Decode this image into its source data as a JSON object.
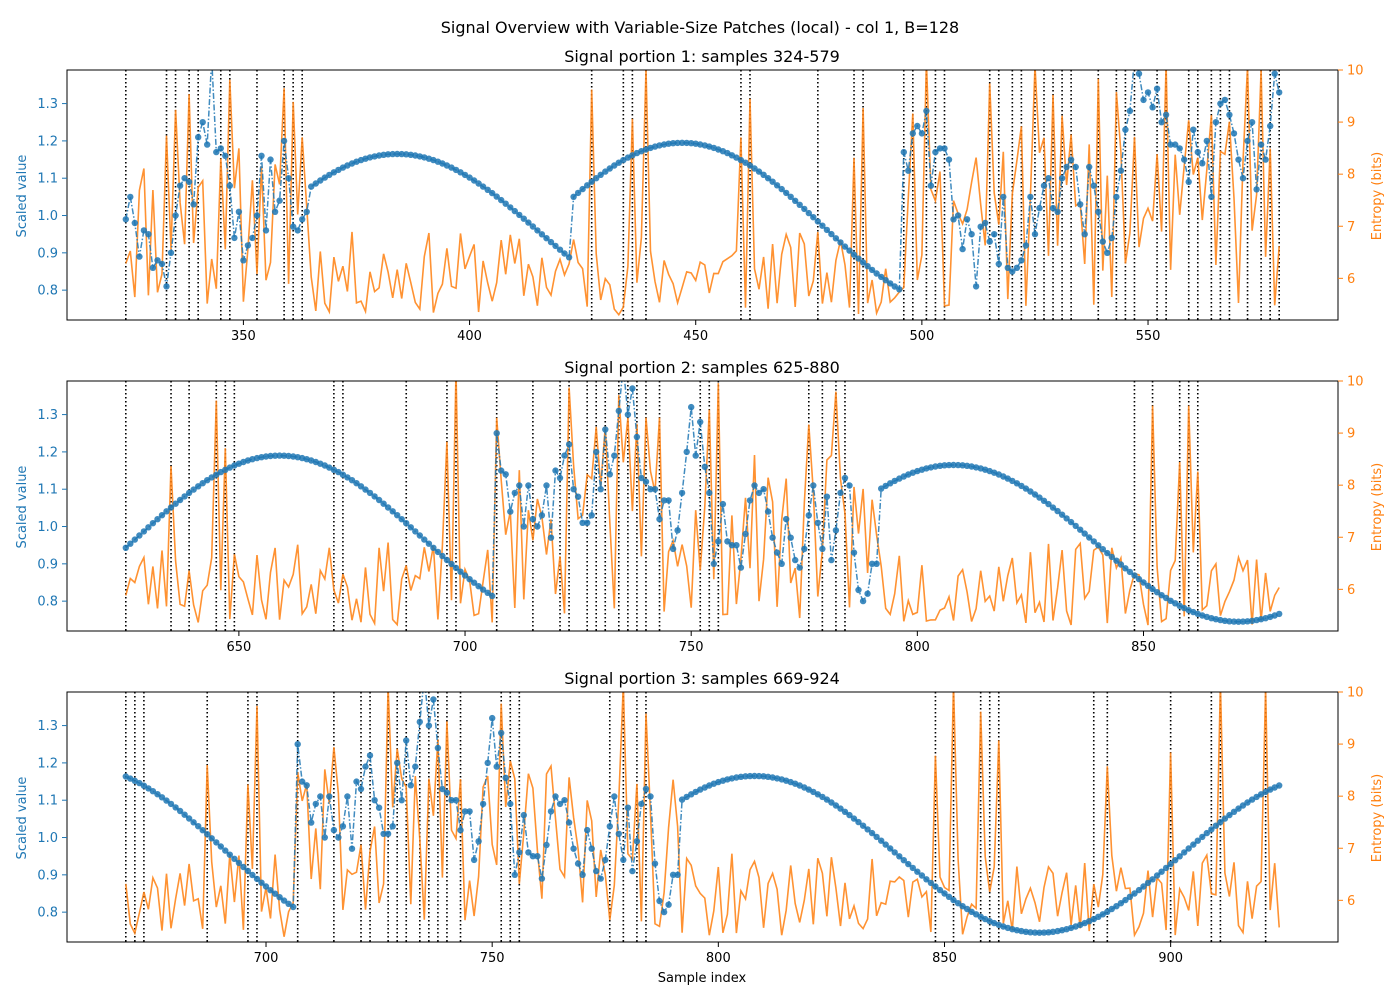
{
  "figure": {
    "suptitle": "Signal Overview with Variable-Size Patches (local) - col 1, B=128",
    "xlabel": "Sample index",
    "ylabel_left": "Scaled value",
    "ylabel_right": "Entropy (bits)"
  },
  "colors": {
    "signal": "#1f77b4",
    "entropy": "#ff7f0e",
    "boundary": "#000000"
  },
  "chart_data": [
    {
      "type": "line",
      "title": "Signal portion 1: samples 324-579",
      "x_range": [
        324,
        579
      ],
      "xlim": [
        311,
        592
      ],
      "xticks": [
        350,
        400,
        450,
        500,
        550
      ],
      "ylim_left": [
        0.72,
        1.39
      ],
      "yticks_left": [
        0.8,
        0.9,
        1.0,
        1.1,
        1.2,
        1.3
      ],
      "ylim_right": [
        5.2,
        10.0
      ],
      "yticks_right": [
        6,
        7,
        8,
        9,
        10
      ],
      "boundaries": [
        324,
        333,
        335,
        338,
        340,
        345,
        347,
        353,
        359,
        361,
        363,
        427,
        434,
        436,
        439,
        460,
        462,
        477,
        485,
        487,
        496,
        498,
        501,
        503,
        505,
        515,
        517,
        520,
        522,
        525,
        527,
        529,
        531,
        533,
        539,
        543,
        545,
        547,
        552,
        554,
        559,
        561,
        564,
        566,
        568,
        572,
        575,
        577,
        579
      ],
      "chaotic_segments": [
        [
          324,
          364
        ],
        [
          496,
          579
        ]
      ],
      "sine": [
        {
          "from": 363,
          "to": 422,
          "mean": 0.955,
          "amp": 0.21,
          "period": 126,
          "peak": 384
        },
        {
          "from": 422,
          "to": 496,
          "mean": 0.97,
          "amp": 0.225,
          "period": 125,
          "peak": 447
        }
      ],
      "noise_points": [
        0.99,
        1.05,
        0.98,
        0.89,
        0.96,
        0.95,
        0.86,
        0.88,
        0.87,
        0.81,
        0.9,
        1.0,
        1.08,
        1.1,
        1.09,
        1.03,
        1.21,
        1.25,
        1.19,
        1.42,
        1.17,
        1.18,
        1.16,
        1.08,
        0.94,
        1.01,
        0.88,
        0.92,
        0.94,
        1.0,
        1.16,
        0.96,
        1.15,
        1.01,
        1.04,
        1.2,
        1.1,
        0.97,
        0.96,
        0.99,
        1.01
      ],
      "noise_points_2": [
        1.17,
        1.12,
        1.22,
        1.24,
        1.22,
        1.28,
        1.08,
        1.17,
        1.18,
        1.18,
        1.15,
        0.99,
        1.0,
        0.91,
        0.99,
        0.95,
        0.81,
        0.97,
        0.98,
        0.93,
        0.95,
        0.87,
        1.05,
        0.86,
        0.85,
        0.86,
        0.88,
        0.92,
        1.05,
        0.95,
        1.02,
        1.08,
        1.1,
        1.02,
        1.01,
        1.1,
        1.13,
        1.15,
        1.13,
        1.03,
        0.95,
        1.13,
        1.08,
        1.01,
        0.93,
        0.9,
        0.94,
        1.05,
        1.12,
        1.23,
        1.28,
        1.42,
        1.38,
        1.31,
        1.33,
        1.29,
        1.34,
        1.25,
        1.27,
        1.19,
        1.19,
        1.18,
        1.15,
        1.09,
        1.23,
        1.17,
        1.14,
        1.2,
        1.05,
        1.25,
        1.3,
        1.31,
        1.27,
        1.22,
        1.15,
        1.1,
        1.2,
        1.25,
        1.07,
        1.19,
        1.15,
        1.24,
        1.38,
        1.33,
        0.93
      ],
      "entropy_seed": 11
    },
    {
      "type": "line",
      "title": "Signal portion 2: samples 625-880",
      "x_range": [
        625,
        880
      ],
      "xlim": [
        612,
        893
      ],
      "xticks": [
        650,
        700,
        750,
        800,
        850
      ],
      "ylim_left": [
        0.72,
        1.39
      ],
      "yticks_left": [
        0.8,
        0.9,
        1.0,
        1.1,
        1.2,
        1.3
      ],
      "ylim_right": [
        5.2,
        10.0
      ],
      "yticks_right": [
        6,
        7,
        8,
        9,
        10
      ],
      "boundaries": [
        625,
        635,
        639,
        645,
        647,
        649,
        671,
        673,
        687,
        696,
        698,
        707,
        715,
        721,
        723,
        727,
        729,
        731,
        734,
        736,
        738,
        740,
        743,
        752,
        754,
        756,
        776,
        779,
        782,
        784,
        848,
        852,
        858,
        860,
        862
      ],
      "chaotic_segments": [
        [
          707,
          791
        ]
      ],
      "sine": [
        {
          "from": 625,
          "to": 707,
          "mean": 0.965,
          "amp": 0.225,
          "period": 128,
          "peak": 659
        },
        {
          "from": 791,
          "to": 880,
          "mean": 0.955,
          "amp": 0.21,
          "period": 63,
          "peak": 808,
          "wide": true
        }
      ],
      "noise_points": [
        1.25,
        1.15,
        1.14,
        1.04,
        1.09,
        1.11,
        1.0,
        1.11,
        1.02,
        1.0,
        1.03,
        1.11,
        0.97,
        1.15,
        1.13,
        1.19,
        1.22,
        1.1,
        1.08,
        1.01,
        1.01,
        1.03,
        1.2,
        1.1,
        1.26,
        1.14,
        1.19,
        1.31,
        1.43,
        1.3,
        1.37,
        1.24,
        1.13,
        1.12,
        1.1,
        1.1,
        1.02,
        1.07,
        1.07,
        0.94,
        0.99,
        1.09,
        1.2,
        1.32,
        1.19,
        1.28,
        1.16,
        1.09,
        0.9,
        0.96,
        1.06,
        0.96,
        0.95,
        0.95,
        0.89,
        0.98,
        1.07,
        1.11,
        1.09,
        1.1,
        1.04,
        0.97,
        0.93,
        0.9,
        1.02,
        0.97,
        0.91,
        0.89,
        0.94,
        1.03,
        1.11,
        1.01,
        0.94,
        1.08,
        0.91,
        0.99,
        1.09,
        1.13,
        1.11,
        0.93,
        0.83,
        0.8,
        0.82,
        0.9
      ],
      "entropy_seed": 23
    },
    {
      "type": "line",
      "title": "Signal portion 3: samples 669-924",
      "x_range": [
        669,
        924
      ],
      "xlim": [
        656,
        937
      ],
      "xticks": [
        700,
        750,
        800,
        850,
        900
      ],
      "ylim_left": [
        0.72,
        1.39
      ],
      "yticks_left": [
        0.8,
        0.9,
        1.0,
        1.1,
        1.2,
        1.3
      ],
      "ylim_right": [
        5.2,
        10.0
      ],
      "yticks_right": [
        6,
        7,
        8,
        9,
        10
      ],
      "boundaries": [
        669,
        671,
        673,
        687,
        696,
        698,
        707,
        715,
        721,
        723,
        727,
        729,
        731,
        734,
        736,
        738,
        740,
        743,
        752,
        754,
        756,
        776,
        779,
        782,
        784,
        848,
        852,
        858,
        860,
        862,
        883,
        886,
        900,
        909,
        911,
        921
      ],
      "chaotic_segments": [
        [
          707,
          791
        ]
      ],
      "sine": [
        {
          "from": 669,
          "to": 707,
          "mean": 0.965,
          "amp": 0.225,
          "period": 128,
          "peak": 659
        },
        {
          "from": 791,
          "to": 924,
          "mean": 0.955,
          "amp": 0.21,
          "period": 63,
          "peak": 808,
          "wide": true
        }
      ],
      "noise_points": [
        1.25,
        1.15,
        1.14,
        1.04,
        1.09,
        1.11,
        1.0,
        1.11,
        1.02,
        1.0,
        1.03,
        1.11,
        0.97,
        1.15,
        1.13,
        1.19,
        1.22,
        1.1,
        1.08,
        1.01,
        1.01,
        1.03,
        1.2,
        1.1,
        1.26,
        1.14,
        1.19,
        1.31,
        1.43,
        1.3,
        1.37,
        1.24,
        1.13,
        1.12,
        1.1,
        1.1,
        1.02,
        1.07,
        1.07,
        0.94,
        0.99,
        1.09,
        1.2,
        1.32,
        1.19,
        1.28,
        1.16,
        1.09,
        0.9,
        0.96,
        1.06,
        0.96,
        0.95,
        0.95,
        0.89,
        0.98,
        1.07,
        1.11,
        1.09,
        1.1,
        1.04,
        0.97,
        0.93,
        0.9,
        1.02,
        0.97,
        0.91,
        0.89,
        0.94,
        1.03,
        1.11,
        1.01,
        0.94,
        1.08,
        0.91,
        0.99,
        1.09,
        1.13,
        1.11,
        0.93,
        0.83,
        0.8,
        0.82,
        0.9
      ],
      "entropy_seed": 37
    }
  ]
}
